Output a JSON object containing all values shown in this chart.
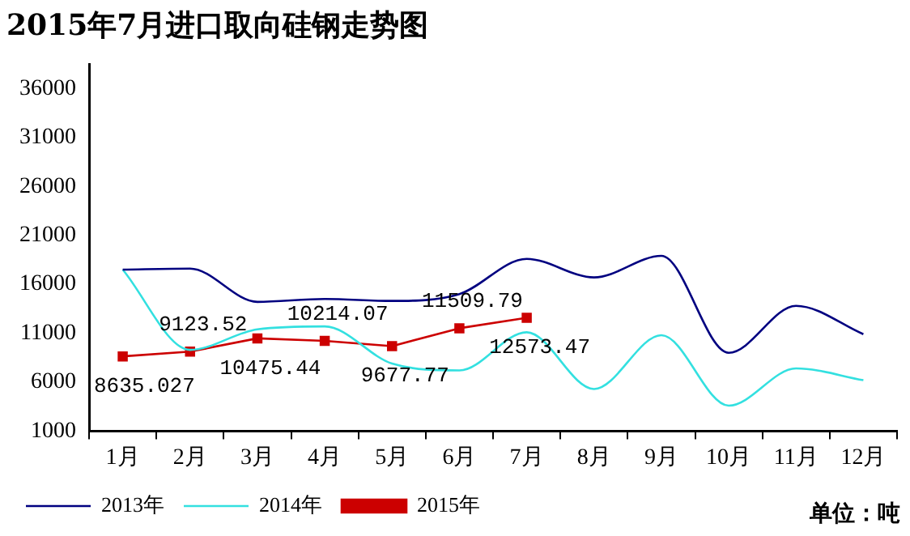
{
  "chart_data": {
    "type": "line",
    "title": "2015年7月进口取向硅钢走势图",
    "categories": [
      "1月",
      "2月",
      "3月",
      "4月",
      "5月",
      "6月",
      "7月",
      "8月",
      "9月",
      "10月",
      "11月",
      "12月"
    ],
    "series": [
      {
        "name": "2013年",
        "color": "#000080",
        "values": [
          17500,
          17600,
          14200,
          14500,
          14300,
          15000,
          18600,
          16700,
          18900,
          9000,
          13800,
          10900
        ]
      },
      {
        "name": "2014年",
        "color": "#33e0e0",
        "values": [
          17500,
          9300,
          11400,
          11700,
          7900,
          7200,
          11100,
          5300,
          10800,
          3600,
          7400,
          6200
        ]
      },
      {
        "name": "2015年",
        "color": "#cc0000",
        "marker": "square",
        "data_labels": true,
        "value_labels": [
          "8635.027",
          "9123.52",
          "10475.44",
          "10214.07",
          "9677.77",
          "11509.79",
          "12573.47",
          null,
          null,
          null,
          null,
          null
        ],
        "values": [
          8635.027,
          9123.52,
          10475.44,
          10214.07,
          9677.77,
          11509.79,
          12573.47,
          null,
          null,
          null,
          null,
          null
        ]
      }
    ],
    "ylim": [
      1000,
      38500
    ],
    "yticks": [
      1000,
      6000,
      11000,
      16000,
      21000,
      26000,
      31000,
      36000
    ],
    "grid": false,
    "legend": "bottom",
    "marker": "none",
    "line_style": "solid",
    "annotations": [
      "单位：吨"
    ]
  }
}
